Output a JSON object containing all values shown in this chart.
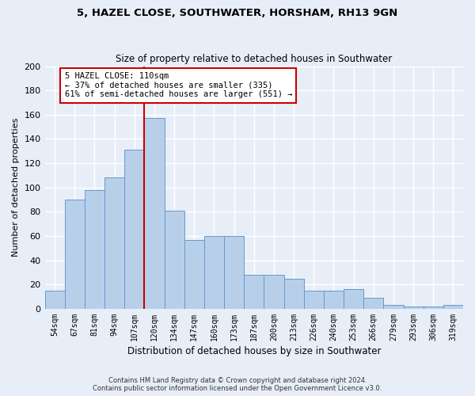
{
  "title1": "5, HAZEL CLOSE, SOUTHWATER, HORSHAM, RH13 9GN",
  "title2": "Size of property relative to detached houses in Southwater",
  "xlabel": "Distribution of detached houses by size in Southwater",
  "ylabel": "Number of detached properties",
  "categories": [
    "54sqm",
    "67sqm",
    "81sqm",
    "94sqm",
    "107sqm",
    "120sqm",
    "134sqm",
    "147sqm",
    "160sqm",
    "173sqm",
    "187sqm",
    "200sqm",
    "213sqm",
    "226sqm",
    "240sqm",
    "253sqm",
    "266sqm",
    "279sqm",
    "293sqm",
    "306sqm",
    "319sqm"
  ],
  "values": [
    15,
    90,
    98,
    108,
    131,
    157,
    81,
    57,
    60,
    60,
    28,
    28,
    25,
    15,
    15,
    16,
    9,
    3,
    2,
    2,
    3
  ],
  "bar_color": "#b8cfea",
  "bar_edge_color": "#6699cc",
  "vline_x": 4.5,
  "vline_color": "#cc0000",
  "annotation_text": "5 HAZEL CLOSE: 110sqm\n← 37% of detached houses are smaller (335)\n61% of semi-detached houses are larger (551) →",
  "annotation_box_color": "#ffffff",
  "annotation_box_edge": "#cc0000",
  "ylim": [
    0,
    200
  ],
  "yticks": [
    0,
    20,
    40,
    60,
    80,
    100,
    120,
    140,
    160,
    180,
    200
  ],
  "footer1": "Contains HM Land Registry data © Crown copyright and database right 2024.",
  "footer2": "Contains public sector information licensed under the Open Government Licence v3.0.",
  "bg_color": "#e8eef8",
  "plot_bg_color": "#e8eef8",
  "grid_color": "#ffffff"
}
